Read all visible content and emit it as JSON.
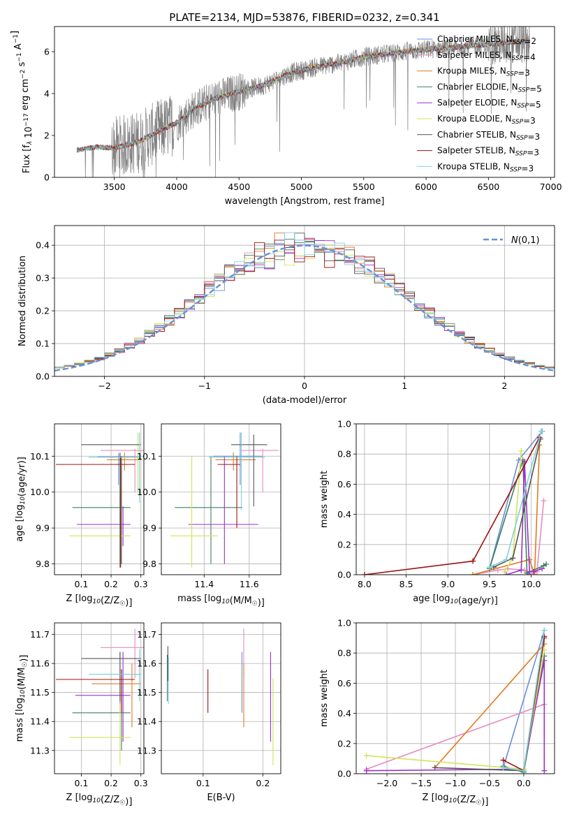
{
  "figure_title": "PLATE=2134, MJD=53876, FIBERID=0232, z=0.341",
  "colors": {
    "Chabrier MILES": "#6a8fd8",
    "Salpeter MILES": "#e68cc0",
    "Kroupa MILES": "#e07b20",
    "Chabrier ELODIE": "#3f7f5f",
    "Salpeter ELODIE": "#9b30c8",
    "Kroupa ELODIE": "#d4e35a",
    "Chabrier STELIB": "#555555",
    "Salpeter STELIB": "#a01010",
    "Kroupa STELIB": "#7fd4d8",
    "data": "#808080",
    "gaussian": "#6a8fd8"
  },
  "chart_data": [
    {
      "id": "spectrum",
      "type": "line",
      "title": "",
      "xlabel": "wavelength [Angstrom, rest frame]",
      "ylabel": "Flux [f_λ 10^-17 erg cm^-2 s^-1 A^-1]",
      "xlim": [
        3020,
        7030
      ],
      "ylim": [
        0,
        7.2
      ],
      "xticks": [
        3500,
        4000,
        4500,
        5000,
        5500,
        6000,
        6500,
        7000
      ],
      "yticks": [
        0,
        2,
        4,
        6
      ],
      "grid": false,
      "legend_position": "top-right",
      "legend": [
        {
          "label": "Chabrier MILES, N_SSP=2"
        },
        {
          "label": "Salpeter MILES, N_SSP=4"
        },
        {
          "label": "Kroupa MILES, N_SSP=3"
        },
        {
          "label": "Chabrier ELODIE, N_SSP=5"
        },
        {
          "label": "Salpeter ELODIE, N_SSP=5"
        },
        {
          "label": "Kroupa ELODIE, N_SSP=3"
        },
        {
          "label": "Chabrier STELIB, N_SSP=3"
        },
        {
          "label": "Salpeter STELIB, N_SSP=3"
        },
        {
          "label": "Kroupa STELIB, N_SSP=3"
        }
      ],
      "continuum": {
        "x": [
          3200,
          3350,
          3500,
          3700,
          3850,
          4000,
          4150,
          4300,
          4500,
          4700,
          4900,
          5100,
          5300,
          5500,
          5700,
          5900,
          6100,
          6300,
          6500,
          6700,
          6830
        ],
        "y": [
          1.3,
          1.45,
          1.4,
          1.7,
          2.2,
          2.6,
          3.3,
          3.75,
          4.1,
          4.4,
          4.95,
          5.25,
          5.45,
          5.75,
          5.9,
          6.05,
          6.15,
          6.25,
          6.35,
          6.45,
          6.5
        ]
      }
    },
    {
      "id": "residuals",
      "type": "line",
      "title": "",
      "xlabel": "(data-model)/error",
      "ylabel": "Normed distribution",
      "xlim": [
        -2.5,
        2.5
      ],
      "ylim": [
        0,
        0.46
      ],
      "xticks": [
        -2,
        -1,
        0,
        1,
        2
      ],
      "yticks": [
        0.0,
        0.1,
        0.2,
        0.3,
        0.4
      ],
      "grid": true,
      "legend_position": "top-right",
      "legend": [
        {
          "label": "N(0,1)"
        }
      ],
      "bins": 50
    },
    {
      "id": "age-vs-Z",
      "type": "scatter",
      "xlabel": "Z [log10(Z/Z☉)]",
      "ylabel": "age  [log10(age/yr)]",
      "xlim": [
        0.01,
        0.31
      ],
      "ylim": [
        9.77,
        10.19
      ],
      "xticks": [
        0.1,
        0.2,
        0.3
      ],
      "yticks": [
        9.8,
        9.9,
        10.0,
        10.1
      ],
      "grid": true,
      "points": [
        {
          "model": "Chabrier MILES",
          "x": 0.225,
          "xerr": [
            0.155,
            0.295
          ],
          "y": 10.098,
          "yerr": [
            10.02,
            10.108
          ]
        },
        {
          "model": "Salpeter MILES",
          "x": 0.28,
          "xerr": [
            0.165,
            0.31
          ],
          "y": 10.116,
          "yerr": [
            10.0,
            10.12
          ]
        },
        {
          "model": "Kroupa MILES",
          "x": 0.245,
          "xerr": [
            0.185,
            0.3
          ],
          "y": 10.09,
          "yerr": [
            10.06,
            10.11
          ]
        },
        {
          "model": "Chabrier ELODIE",
          "x": 0.235,
          "xerr": [
            0.07,
            0.265
          ],
          "y": 9.957,
          "yerr": [
            9.8,
            10.1
          ]
        },
        {
          "model": "Salpeter ELODIE",
          "x": 0.24,
          "xerr": [
            0.085,
            0.265
          ],
          "y": 9.91,
          "yerr": [
            9.85,
            9.96
          ]
        },
        {
          "model": "Kroupa ELODIE",
          "x": 0.29,
          "xerr": [
            0.06,
            0.265
          ],
          "y": 9.878,
          "yerr": [
            10.0,
            10.166
          ]
        },
        {
          "model": "Chabrier STELIB",
          "x": 0.23,
          "xerr": [
            0.1,
            0.3
          ],
          "y": 10.132,
          "yerr": [
            9.79,
            10.11
          ]
        },
        {
          "model": "Salpeter STELIB",
          "x": 0.232,
          "xerr": [
            0.015,
            0.28
          ],
          "y": 10.077,
          "yerr": [
            9.79,
            10.1
          ]
        },
        {
          "model": "Kroupa STELIB",
          "x": 0.295,
          "xerr": [
            0.125,
            0.3
          ],
          "y": 10.097,
          "yerr": [
            9.97,
            10.166
          ]
        }
      ]
    },
    {
      "id": "age-vs-mass",
      "type": "scatter",
      "xlabel": "mass [log10(M/M☉)]",
      "ylabel": "",
      "xlim": [
        11.21,
        11.74
      ],
      "ylim": [
        9.77,
        10.19
      ],
      "xticks": [
        11.4,
        11.6
      ],
      "yticks": [
        9.8,
        9.9,
        10.0,
        10.1
      ],
      "grid": true,
      "points": [
        {
          "model": "Chabrier MILES",
          "x": 11.56,
          "xerr": [
            11.44,
            11.66
          ],
          "y": 10.1,
          "yerr": [
            10.02,
            10.166
          ]
        },
        {
          "model": "Salpeter MILES",
          "x": 11.66,
          "xerr": [
            11.56,
            11.73
          ],
          "y": 10.116,
          "yerr": [
            10.0,
            10.12
          ]
        },
        {
          "model": "Kroupa MILES",
          "x": 11.53,
          "xerr": [
            11.45,
            11.63
          ],
          "y": 10.09,
          "yerr": [
            10.06,
            10.11
          ]
        },
        {
          "model": "Chabrier ELODIE",
          "x": 11.43,
          "xerr": [
            11.27,
            11.57
          ],
          "y": 9.957,
          "yerr": [
            9.8,
            10.1
          ]
        },
        {
          "model": "Salpeter ELODIE",
          "x": 11.49,
          "xerr": [
            11.33,
            11.64
          ],
          "y": 9.91,
          "yerr": [
            9.8,
            10.1
          ]
        },
        {
          "model": "Kroupa ELODIE",
          "x": 11.345,
          "xerr": [
            11.25,
            11.46
          ],
          "y": 9.878,
          "yerr": [
            9.79,
            10.1
          ]
        },
        {
          "model": "Chabrier STELIB",
          "x": 11.62,
          "xerr": [
            11.52,
            11.68
          ],
          "y": 10.132,
          "yerr": [
            9.96,
            10.16
          ]
        },
        {
          "model": "Salpeter STELIB",
          "x": 11.545,
          "xerr": [
            11.46,
            11.56
          ],
          "y": 10.077,
          "yerr": [
            9.9,
            10.1
          ]
        },
        {
          "model": "Kroupa STELIB",
          "x": 11.565,
          "xerr": [
            11.42,
            11.67
          ],
          "y": 10.097,
          "yerr": [
            9.95,
            10.166
          ]
        }
      ]
    },
    {
      "id": "mass-weight-vs-age",
      "type": "line",
      "xlabel": "age  [log10(age/yr)]",
      "ylabel": "mass weight",
      "xlim": [
        7.9,
        10.28
      ],
      "ylim": [
        0,
        1
      ],
      "xticks": [
        8.0,
        8.5,
        9.0,
        9.5,
        10.0
      ],
      "yticks": [
        0.0,
        0.2,
        0.4,
        0.6,
        0.8,
        1.0
      ],
      "grid": true,
      "series": [
        {
          "model": "Chabrier MILES",
          "x": [
            9.5,
            9.85,
            10.13
          ],
          "y": [
            0.04,
            0.76,
            0.95
          ]
        },
        {
          "model": "Salpeter MILES",
          "x": [
            9.3,
            9.6,
            9.72,
            9.92,
            9.96,
            10.07,
            10.15
          ],
          "y": [
            0.0,
            0.03,
            0.04,
            0.03,
            0.0,
            0.02,
            0.49
          ]
        },
        {
          "model": "Kroupa MILES",
          "x": [
            9.3,
            9.98,
            10.04,
            10.1
          ],
          "y": [
            0.0,
            0.1,
            0.0,
            0.86
          ]
        },
        {
          "model": "Chabrier ELODIE",
          "x": [
            9.5,
            9.9,
            9.95,
            10.15,
            10.18
          ],
          "y": [
            0.04,
            0.76,
            0.01,
            0.06,
            0.07
          ]
        },
        {
          "model": "Salpeter ELODIE",
          "x": [
            9.7,
            9.88,
            9.92,
            9.98,
            10.03,
            10.13
          ],
          "y": [
            0.0,
            0.03,
            0.75,
            0.02,
            0.02,
            0.04
          ]
        },
        {
          "model": "Kroupa ELODIE",
          "x": [
            9.68,
            9.78,
            9.88
          ],
          "y": [
            0.02,
            0.11,
            0.82
          ]
        },
        {
          "model": "Chabrier STELIB",
          "x": [
            9.55,
            9.78,
            10.11
          ],
          "y": [
            0.05,
            0.11,
            0.9
          ]
        },
        {
          "model": "Salpeter STELIB",
          "x": [
            8.0,
            9.3,
            10.1
          ],
          "y": [
            0.0,
            0.09,
            0.91
          ]
        },
        {
          "model": "Kroupa STELIB",
          "x": [
            9.5,
            9.7,
            10.12
          ],
          "y": [
            0.05,
            0.1,
            0.95
          ]
        }
      ]
    },
    {
      "id": "mass-vs-Z",
      "type": "scatter",
      "xlabel": "Z [log10(Z/Z☉)]",
      "ylabel": "mass [log10(M/M☉)]",
      "xlim": [
        0.01,
        0.31
      ],
      "ylim": [
        11.22,
        11.74
      ],
      "xticks": [
        0.1,
        0.2,
        0.3
      ],
      "yticks": [
        11.3,
        11.4,
        11.5,
        11.6,
        11.7
      ],
      "grid": true,
      "points": [
        {
          "model": "Chabrier MILES",
          "x": 0.23,
          "xerr": [
            0.15,
            0.3
          ],
          "y": 11.563,
          "yerr": [
            11.43,
            11.64
          ]
        },
        {
          "model": "Salpeter MILES",
          "x": 0.28,
          "xerr": [
            0.165,
            0.31
          ],
          "y": 11.655,
          "yerr": [
            11.55,
            11.72
          ]
        },
        {
          "model": "Kroupa MILES",
          "x": 0.27,
          "xerr": [
            0.135,
            0.3
          ],
          "y": 11.53,
          "yerr": [
            11.38,
            11.6
          ]
        },
        {
          "model": "Chabrier ELODIE",
          "x": 0.235,
          "xerr": [
            0.07,
            0.265
          ],
          "y": 11.43,
          "yerr": [
            11.3,
            11.58
          ]
        },
        {
          "model": "Salpeter ELODIE",
          "x": 0.24,
          "xerr": [
            0.08,
            0.265
          ],
          "y": 11.49,
          "yerr": [
            11.33,
            11.64
          ]
        },
        {
          "model": "Kroupa ELODIE",
          "x": 0.23,
          "xerr": [
            0.06,
            0.265
          ],
          "y": 11.345,
          "yerr": [
            11.25,
            11.46
          ]
        },
        {
          "model": "Chabrier STELIB",
          "x": 0.23,
          "xerr": [
            0.1,
            0.3
          ],
          "y": 11.617,
          "yerr": [
            11.47,
            11.64
          ]
        },
        {
          "model": "Salpeter STELIB",
          "x": 0.235,
          "xerr": [
            0.015,
            0.28
          ],
          "y": 11.545,
          "yerr": [
            11.43,
            11.58
          ]
        },
        {
          "model": "Kroupa STELIB",
          "x": 0.295,
          "xerr": [
            0.125,
            0.3
          ],
          "y": 11.563,
          "yerr": [
            11.47,
            11.65
          ]
        }
      ]
    },
    {
      "id": "mass-vs-EBV",
      "type": "scatter",
      "xlabel": "E(B-V)",
      "ylabel": "",
      "xlim": [
        0.03,
        0.23
      ],
      "ylim": [
        11.22,
        11.74
      ],
      "xticks": [
        0.1,
        0.2
      ],
      "yticks": [
        11.3,
        11.4,
        11.5,
        11.6,
        11.7
      ],
      "grid": true,
      "points": [
        {
          "model": "Chabrier MILES",
          "x": 0.165,
          "y": 11.56,
          "yerr": [
            11.43,
            11.64
          ]
        },
        {
          "model": "Salpeter MILES",
          "x": 0.168,
          "y": 11.63,
          "yerr": [
            11.55,
            11.72
          ]
        },
        {
          "model": "Kroupa MILES",
          "x": 0.168,
          "y": 11.5,
          "yerr": [
            11.38,
            11.6
          ]
        },
        {
          "model": "Chabrier ELODIE",
          "x": 0.04,
          "y": 11.55,
          "yerr": [
            11.47,
            11.63
          ]
        },
        {
          "model": "Salpeter ELODIE",
          "x": 0.213,
          "y": 11.5,
          "yerr": [
            11.33,
            11.64
          ]
        },
        {
          "model": "Kroupa ELODIE",
          "x": 0.217,
          "y": 11.4,
          "yerr": [
            11.25,
            11.55
          ]
        },
        {
          "model": "Chabrier STELIB",
          "x": 0.041,
          "y": 11.6,
          "yerr": [
            11.54,
            11.66
          ]
        },
        {
          "model": "Salpeter STELIB",
          "x": 0.108,
          "y": 11.5,
          "yerr": [
            11.43,
            11.58
          ]
        },
        {
          "model": "Kroupa STELIB",
          "x": 0.042,
          "y": 11.55,
          "yerr": [
            11.46,
            11.62
          ]
        }
      ]
    },
    {
      "id": "mass-weight-vs-Z",
      "type": "line",
      "xlabel": "Z [log10(Z/Z☉)]",
      "ylabel": "mass weight",
      "xlim": [
        -2.45,
        0.45
      ],
      "ylim": [
        0,
        1
      ],
      "xticks": [
        -2.0,
        -1.5,
        -1.0,
        -0.5,
        0.0
      ],
      "yticks": [
        0.0,
        0.2,
        0.4,
        0.6,
        0.8,
        1.0
      ],
      "grid": true,
      "series": [
        {
          "model": "Chabrier MILES",
          "x": [
            -0.3,
            0.3
          ],
          "y": [
            0.04,
            0.95
          ]
        },
        {
          "model": "Salpeter MILES",
          "x": [
            -2.3,
            0.3
          ],
          "y": [
            0.03,
            0.46
          ]
        },
        {
          "model": "Kroupa MILES",
          "x": [
            -1.3,
            0.3
          ],
          "y": [
            0.04,
            0.86
          ]
        },
        {
          "model": "Chabrier ELODIE",
          "x": [
            -0.3,
            0.0,
            0.3
          ],
          "y": [
            0.05,
            0.01,
            0.78
          ]
        },
        {
          "model": "Salpeter ELODIE",
          "x": [
            -2.3,
            0.0,
            0.3,
            0.3
          ],
          "y": [
            0.02,
            0.03,
            0.75,
            0.02
          ]
        },
        {
          "model": "Kroupa ELODIE",
          "x": [
            -2.3,
            0.0,
            0.3
          ],
          "y": [
            0.12,
            0.03,
            0.82
          ]
        },
        {
          "model": "Chabrier STELIB",
          "x": [
            -1.3,
            0.0,
            0.3
          ],
          "y": [
            0.04,
            0.02,
            0.9
          ]
        },
        {
          "model": "Salpeter STELIB",
          "x": [
            -0.3,
            0.0,
            0.3
          ],
          "y": [
            0.09,
            0.02,
            0.91
          ]
        },
        {
          "model": "Kroupa STELIB",
          "x": [
            -0.3,
            0.0,
            0.3
          ],
          "y": [
            0.04,
            0.02,
            0.95
          ]
        }
      ]
    }
  ]
}
